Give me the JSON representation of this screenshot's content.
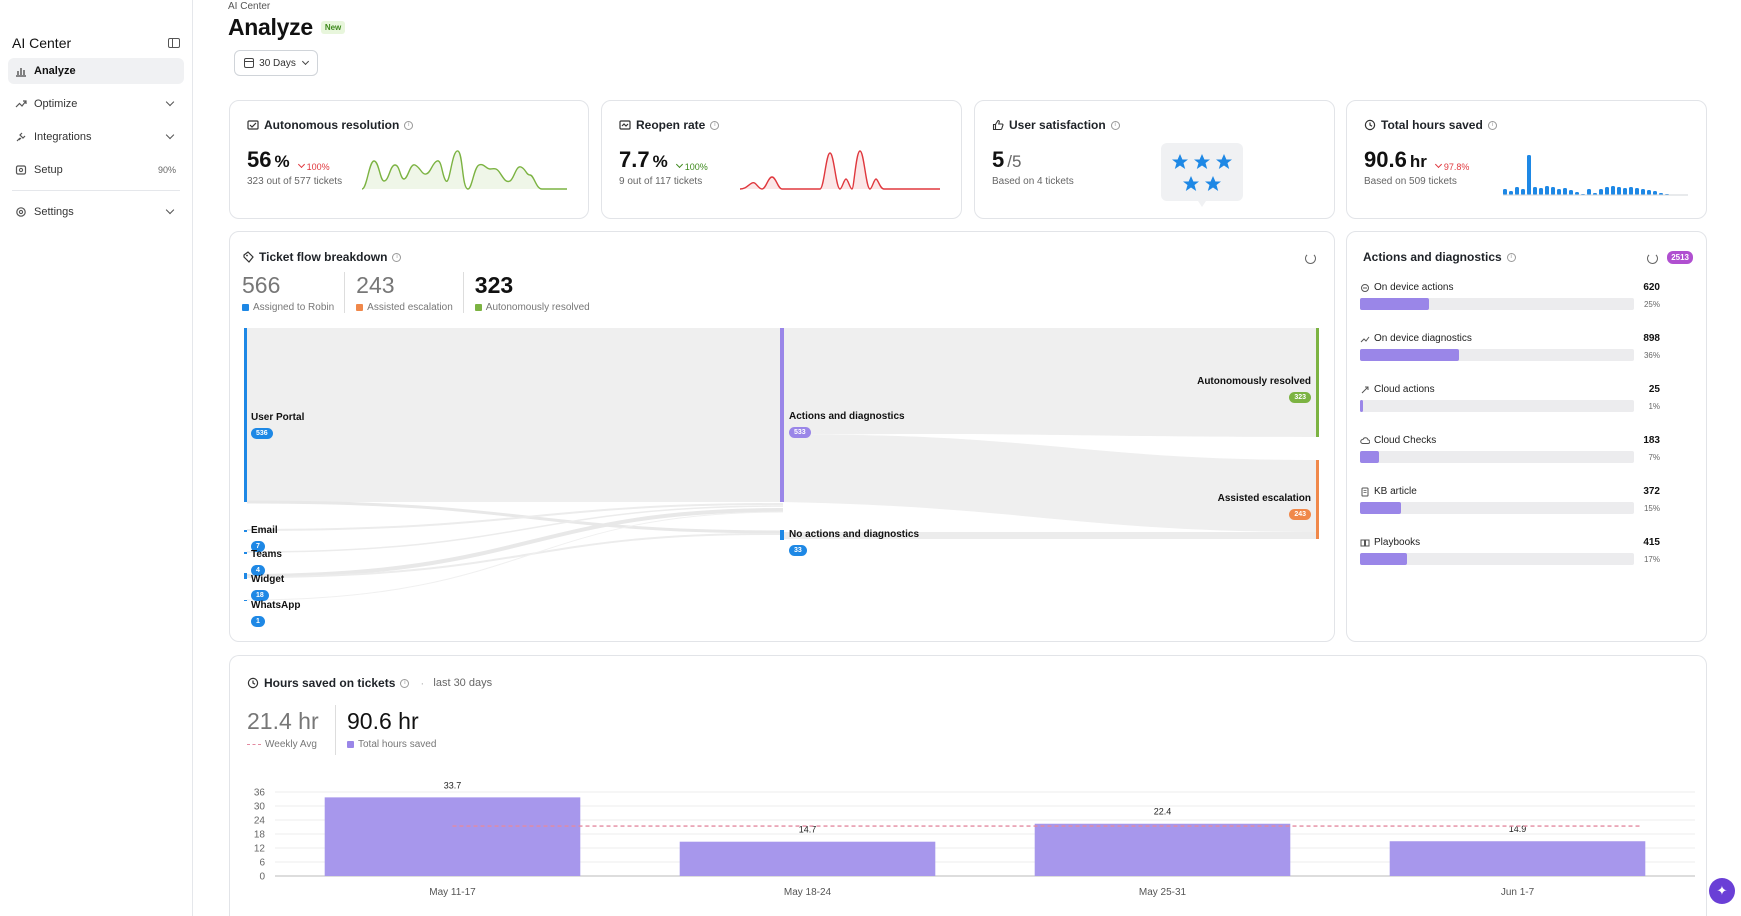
{
  "sidebar": {
    "title": "AI Center",
    "items": [
      {
        "label": "Analyze",
        "icon": "bar-chart-icon",
        "active": true
      },
      {
        "label": "Optimize",
        "icon": "trend-icon"
      },
      {
        "label": "Integrations",
        "icon": "plug-icon"
      },
      {
        "label": "Setup",
        "icon": "gear-box-icon",
        "right": "90%"
      },
      {
        "label": "Settings",
        "icon": "settings-icon"
      }
    ]
  },
  "page": {
    "breadcrumb": "AI Center",
    "title": "Analyze",
    "new_badge": "New",
    "range": "30 Days"
  },
  "kpis": [
    {
      "title": "Autonomous resolution",
      "value": "56",
      "unit": "%",
      "delta": "100%",
      "delta_dir": "down",
      "delta_color": "#e0383e",
      "sub": "323 out of 577 tickets",
      "spark_color": "#7cb342"
    },
    {
      "title": "Reopen rate",
      "value": "7.7",
      "unit": "%",
      "delta": "100%",
      "delta_dir": "down",
      "delta_color": "#3f8a1e",
      "sub": "9 out of 117 tickets",
      "spark_color": "#e0383e"
    },
    {
      "title": "User satisfaction",
      "value": "5",
      "unit": "/5",
      "sub": "Based on 4 tickets",
      "stars": 5
    },
    {
      "title": "Total hours saved",
      "value": "90.6",
      "unit": "hr",
      "delta": "97.8%",
      "delta_dir": "down",
      "delta_color": "#e0383e",
      "sub": "Based on 509 tickets",
      "spark_color": "#1e88e5"
    }
  ],
  "flow": {
    "title": "Ticket flow breakdown",
    "stats": [
      {
        "value": "566",
        "label": "Assigned to Robin",
        "color": "#1e88e5"
      },
      {
        "value": "243",
        "label": "Assisted escalation",
        "color": "#f0884a"
      },
      {
        "value": "323",
        "label": "Autonomously resolved",
        "color": "#7cb342"
      }
    ],
    "sources": [
      {
        "label": "User Portal",
        "count": "536"
      },
      {
        "label": "Email",
        "count": "7"
      },
      {
        "label": "Teams",
        "count": "4"
      },
      {
        "label": "Widget",
        "count": "18"
      },
      {
        "label": "WhatsApp",
        "count": "1"
      }
    ],
    "middle": [
      {
        "label": "Actions and diagnostics",
        "count": "533"
      },
      {
        "label": "No actions and diagnostics",
        "count": "33"
      }
    ],
    "outcomes": [
      {
        "label": "Autonomously resolved",
        "count": "323"
      },
      {
        "label": "Assisted escalation",
        "count": "243"
      }
    ]
  },
  "actions": {
    "title": "Actions and diagnostics",
    "total": "2513",
    "rows": [
      {
        "label": "On device actions",
        "value": "620",
        "pct": "25%",
        "fraction": 0.25,
        "icon": "device-action-icon"
      },
      {
        "label": "On device diagnostics",
        "value": "898",
        "pct": "36%",
        "fraction": 0.36,
        "icon": "diagnostics-icon"
      },
      {
        "label": "Cloud actions",
        "value": "25",
        "pct": "1%",
        "fraction": 0.01,
        "icon": "cloud-action-icon"
      },
      {
        "label": "Cloud Checks",
        "value": "183",
        "pct": "7%",
        "fraction": 0.07,
        "icon": "cloud-check-icon"
      },
      {
        "label": "KB article",
        "value": "372",
        "pct": "15%",
        "fraction": 0.15,
        "icon": "kb-article-icon"
      },
      {
        "label": "Playbooks",
        "value": "415",
        "pct": "17%",
        "fraction": 0.17,
        "icon": "playbook-icon"
      }
    ]
  },
  "hours": {
    "title": "Hours saved on tickets",
    "subtitle": "last 30 days",
    "weekly_avg": "21.4 hr",
    "weekly_avg_label": "Weekly Avg",
    "total": "90.6 hr",
    "total_label": "Total hours saved"
  },
  "chart_data": {
    "type": "bar",
    "categories": [
      "May 11-17",
      "May 18-24",
      "May 25-31",
      "Jun 1-7"
    ],
    "values": [
      33.7,
      14.7,
      22.4,
      14.9
    ],
    "ylim": [
      0,
      36
    ],
    "yticks": [
      0,
      6,
      12,
      18,
      24,
      30,
      36
    ],
    "reference_line": 21.4,
    "bar_color": "#a797ec",
    "ref_color": "#e38aa0"
  }
}
